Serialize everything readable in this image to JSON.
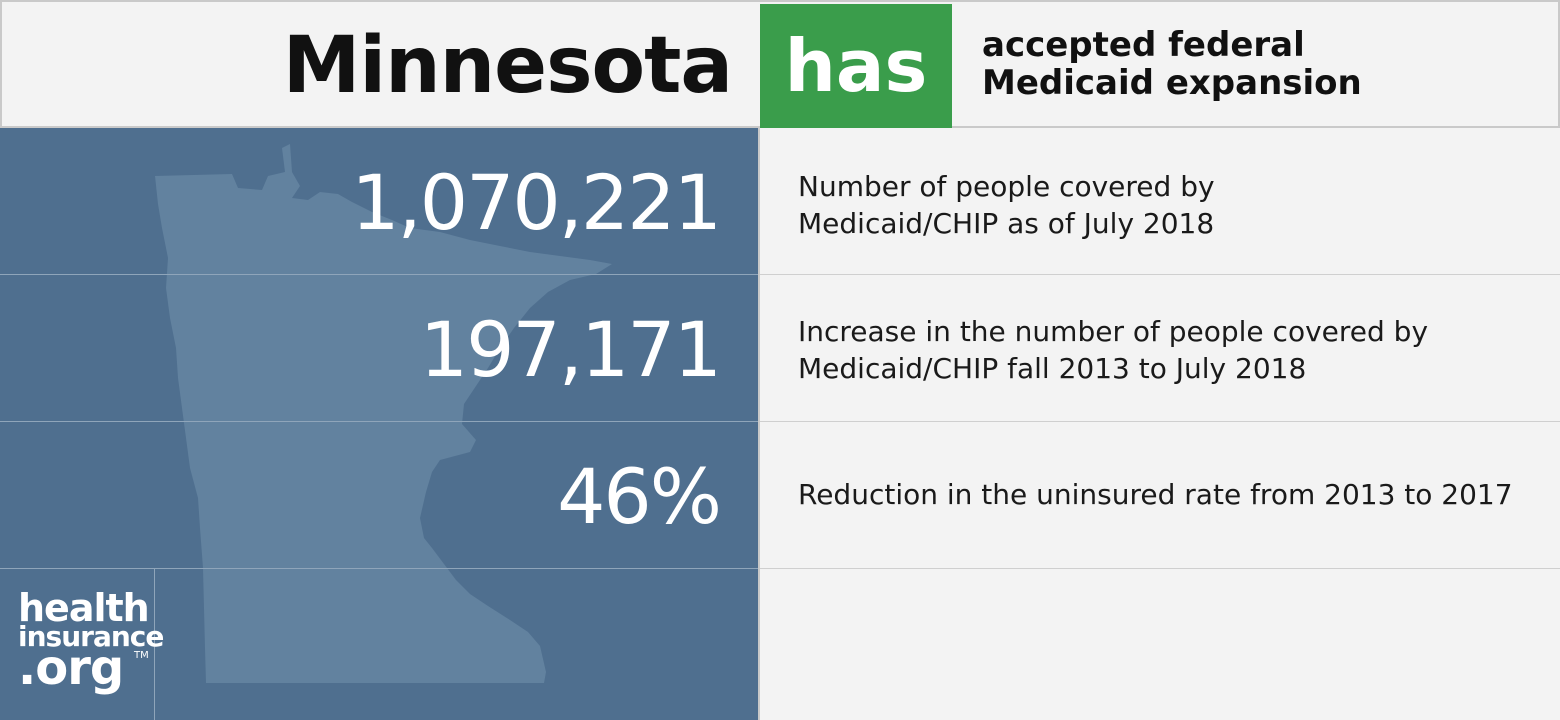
{
  "header": {
    "state": "Minnesota",
    "badge": "has",
    "status_line1": "accepted federal",
    "status_line2": "Medicaid expansion"
  },
  "stats": [
    {
      "value": "1,070,221",
      "desc_line1": "Number of people covered by",
      "desc_line2": "Medicaid/CHIP as of July 2018"
    },
    {
      "value": "197,171",
      "desc_line1": "Increase in the number of people covered by",
      "desc_line2": "Medicaid/CHIP fall 2013 to July 2018"
    },
    {
      "value": "46%",
      "desc_line1": "Reduction in the uninsured rate from 2013 to 2017",
      "desc_line2": ""
    }
  ],
  "logo": {
    "line1": "health",
    "line2": "insurance",
    "line3": ".org",
    "tm": "TM"
  },
  "colors": {
    "badge_green": "#3a9d4b",
    "panel_blue": "#4f6f8f",
    "map_fill": "#62829f",
    "background": "#f3f3f3"
  }
}
